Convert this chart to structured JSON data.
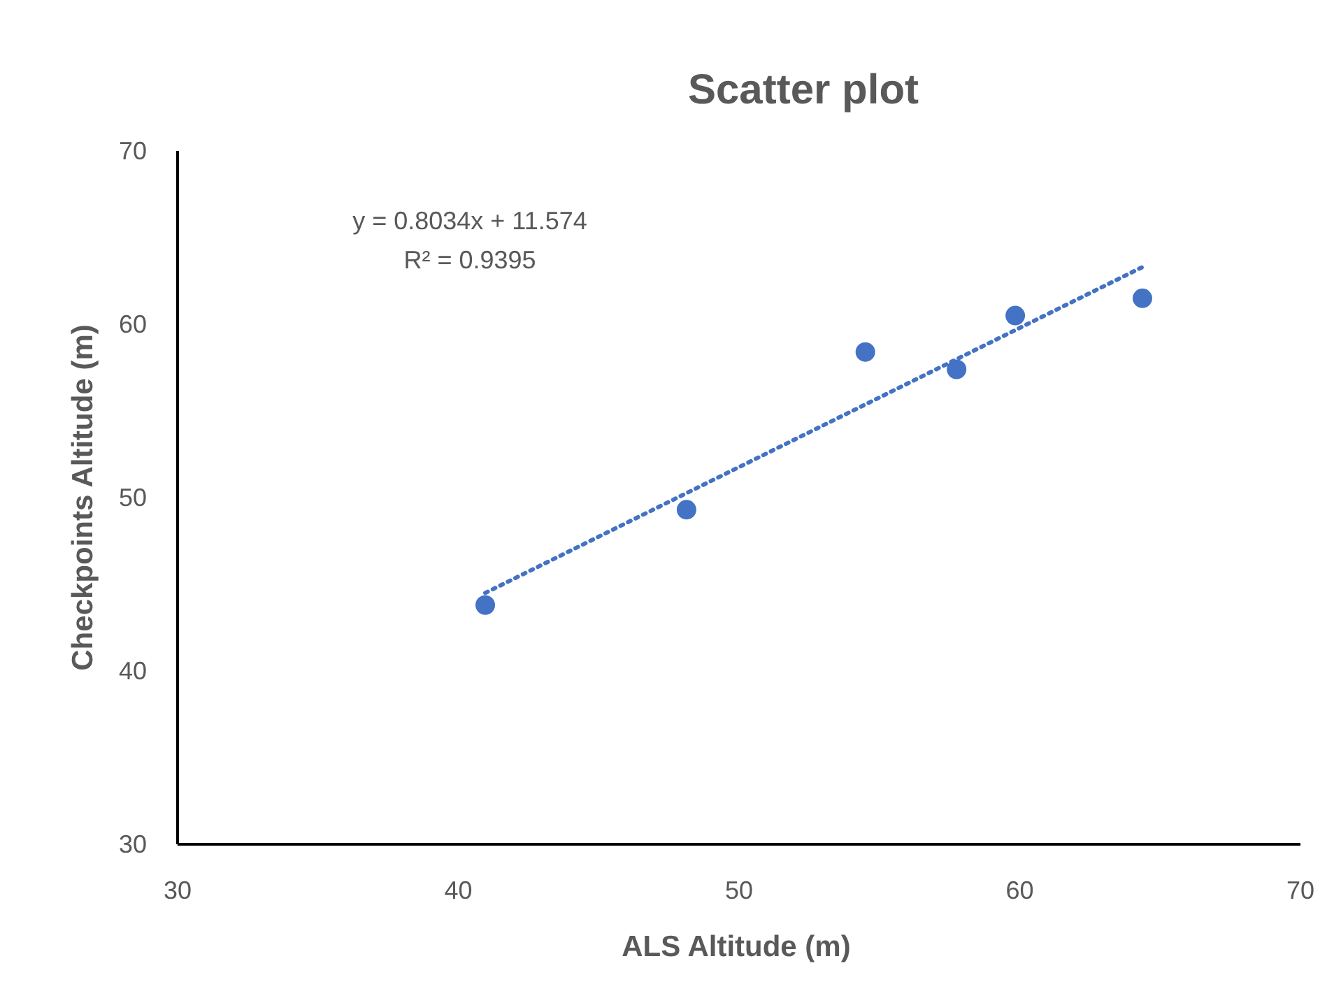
{
  "chart_data": {
    "type": "scatter",
    "title": "Scatter plot",
    "xlabel": "ALS Altitude (m)",
    "ylabel": "Checkpoints Altitude (m)",
    "annotations": [
      "y = 0.8034x + 11.574",
      "R² = 0.9395"
    ],
    "xlim": [
      30,
      70
    ],
    "ylim": [
      30,
      70
    ],
    "xticks": [
      30,
      40,
      50,
      60,
      70
    ],
    "yticks": [
      30,
      40,
      50,
      60,
      70
    ],
    "series": [
      {
        "color": "#4472c4",
        "marker": "circle",
        "x": [
          40.96,
          48.13,
          54.5,
          57.75,
          59.84,
          64.37
        ],
        "values": [
          43.8,
          49.3,
          58.4,
          57.4,
          60.5,
          61.5
        ]
      },
      {
        "type": "line",
        "color": "#4472c4",
        "marker": "none",
        "line_style": "dotted",
        "x": [
          40.96,
          64.37
        ],
        "values": [
          44.5,
          63.3
        ]
      }
    ]
  }
}
